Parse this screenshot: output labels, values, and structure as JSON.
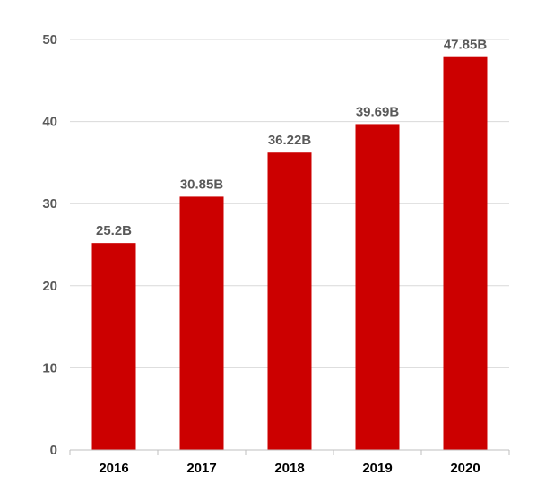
{
  "chart_data": {
    "type": "bar",
    "title": "",
    "xlabel": "",
    "ylabel": "",
    "categories": [
      "2016",
      "2017",
      "2018",
      "2019",
      "2020"
    ],
    "values": [
      25.2,
      30.85,
      36.22,
      39.69,
      47.85
    ],
    "data_labels": [
      "25.2B",
      "30.85B",
      "36.22B",
      "39.69B",
      "47.85B"
    ],
    "ylim": [
      0,
      50
    ],
    "yticks": [
      0,
      10,
      20,
      30,
      40,
      50
    ],
    "grid": true,
    "legend": "none",
    "colors": {
      "bar": "#cc0000",
      "grid": "#d9d9d9",
      "axis": "#bfbfbf"
    }
  }
}
